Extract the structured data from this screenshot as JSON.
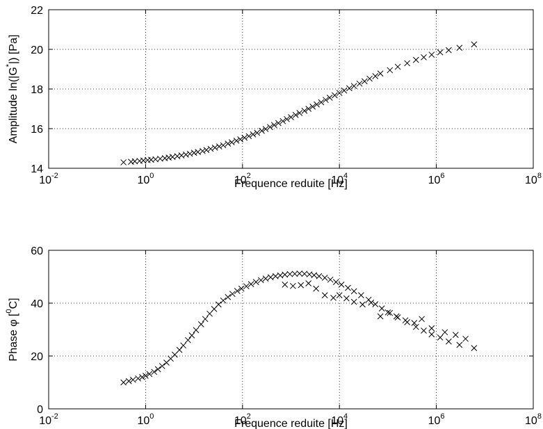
{
  "chart_data": [
    {
      "type": "scatter",
      "xscale": "log",
      "xlim": [
        0.01,
        100000000
      ],
      "ylim": [
        14,
        22
      ],
      "xticks": [
        0.01,
        1,
        100,
        10000,
        1000000,
        100000000
      ],
      "xtick_labels": [
        {
          "base": "10",
          "exp": "-2"
        },
        {
          "base": "10",
          "exp": "0"
        },
        {
          "base": "10",
          "exp": "2"
        },
        {
          "base": "10",
          "exp": "4"
        },
        {
          "base": "10",
          "exp": "6"
        },
        {
          "base": "10",
          "exp": "8"
        }
      ],
      "yticks": [
        14,
        16,
        18,
        20,
        22
      ],
      "ytick_labels": [
        "14",
        "16",
        "18",
        "20",
        "22"
      ],
      "xlabel": "Frequence reduite [Hz]",
      "ylabel": {
        "pre": "Amplitude ln(|G",
        "sup": "*",
        "post": "|) [Pa]"
      },
      "grid": true,
      "marker": "x",
      "points": [
        [
          0.35,
          14.3
        ],
        [
          0.5,
          14.33
        ],
        [
          0.6,
          14.35
        ],
        [
          0.75,
          14.37
        ],
        [
          0.9,
          14.39
        ],
        [
          1.1,
          14.41
        ],
        [
          1.3,
          14.43
        ],
        [
          1.6,
          14.45
        ],
        [
          2.0,
          14.48
        ],
        [
          2.5,
          14.51
        ],
        [
          3.0,
          14.54
        ],
        [
          3.6,
          14.57
        ],
        [
          4.5,
          14.61
        ],
        [
          5.5,
          14.65
        ],
        [
          6.8,
          14.69
        ],
        [
          8.2,
          14.73
        ],
        [
          10,
          14.78
        ],
        [
          12,
          14.82
        ],
        [
          15,
          14.87
        ],
        [
          18,
          14.92
        ],
        [
          22,
          14.98
        ],
        [
          27,
          15.04
        ],
        [
          33,
          15.1
        ],
        [
          40,
          15.16
        ],
        [
          50,
          15.24
        ],
        [
          60,
          15.31
        ],
        [
          75,
          15.39
        ],
        [
          90,
          15.46
        ],
        [
          110,
          15.54
        ],
        [
          135,
          15.62
        ],
        [
          165,
          15.71
        ],
        [
          200,
          15.79
        ],
        [
          250,
          15.89
        ],
        [
          300,
          15.98
        ],
        [
          370,
          16.08
        ],
        [
          450,
          16.18
        ],
        [
          550,
          16.28
        ],
        [
          680,
          16.38
        ],
        [
          820,
          16.48
        ],
        [
          1000,
          16.58
        ],
        [
          1250,
          16.69
        ],
        [
          1500,
          16.79
        ],
        [
          1900,
          16.9
        ],
        [
          2300,
          17.0
        ],
        [
          2800,
          17.11
        ],
        [
          3400,
          17.22
        ],
        [
          4200,
          17.33
        ],
        [
          5200,
          17.45
        ],
        [
          6300,
          17.56
        ],
        [
          8000,
          17.68
        ],
        [
          10000,
          17.8
        ],
        [
          12500,
          17.92
        ],
        [
          16000,
          18.04
        ],
        [
          20000,
          18.15
        ],
        [
          26000,
          18.27
        ],
        [
          33000,
          18.39
        ],
        [
          42000,
          18.52
        ],
        [
          55000,
          18.65
        ],
        [
          70000,
          18.78
        ],
        [
          110000,
          18.95
        ],
        [
          160000,
          19.12
        ],
        [
          250000,
          19.3
        ],
        [
          380000,
          19.47
        ],
        [
          550000,
          19.6
        ],
        [
          800000,
          19.73
        ],
        [
          1200000,
          19.85
        ],
        [
          1800000,
          19.96
        ],
        [
          3000000,
          20.08
        ],
        [
          6000000,
          20.25
        ]
      ]
    },
    {
      "type": "scatter",
      "xscale": "log",
      "xlim": [
        0.01,
        100000000
      ],
      "ylim": [
        0,
        60
      ],
      "xticks": [
        0.01,
        1,
        100,
        10000,
        1000000,
        100000000
      ],
      "xtick_labels": [
        {
          "base": "10",
          "exp": "-2"
        },
        {
          "base": "10",
          "exp": "0"
        },
        {
          "base": "10",
          "exp": "2"
        },
        {
          "base": "10",
          "exp": "4"
        },
        {
          "base": "10",
          "exp": "6"
        },
        {
          "base": "10",
          "exp": "8"
        }
      ],
      "yticks": [
        0,
        20,
        40,
        60
      ],
      "ytick_labels": [
        "0",
        "20",
        "40",
        "60"
      ],
      "xlabel": "Frequence reduite [Hz]",
      "ylabel": {
        "pre": "Phase φ [",
        "sup": "0",
        "post": "C]"
      },
      "grid": true,
      "marker": "x",
      "points": [
        [
          0.35,
          10.0
        ],
        [
          0.45,
          10.5
        ],
        [
          0.55,
          11.0
        ],
        [
          0.7,
          11.5
        ],
        [
          0.85,
          12.0
        ],
        [
          1.0,
          12.5
        ],
        [
          1.2,
          13.2
        ],
        [
          1.5,
          14.0
        ],
        [
          1.8,
          15.0
        ],
        [
          2.2,
          16.2
        ],
        [
          2.7,
          17.5
        ],
        [
          3.3,
          19.0
        ],
        [
          4.0,
          20.5
        ],
        [
          5.0,
          22.3
        ],
        [
          6.0,
          24.0
        ],
        [
          7.5,
          26.0
        ],
        [
          9.0,
          27.8
        ],
        [
          11,
          29.8
        ],
        [
          14,
          32.0
        ],
        [
          17,
          34.0
        ],
        [
          21,
          36.0
        ],
        [
          26,
          37.8
        ],
        [
          32,
          39.5
        ],
        [
          40,
          41.0
        ],
        [
          50,
          42.3
        ],
        [
          62,
          43.5
        ],
        [
          78,
          44.6
        ],
        [
          95,
          45.5
        ],
        [
          120,
          46.4
        ],
        [
          150,
          47.2
        ],
        [
          190,
          48.0
        ],
        [
          240,
          48.7
        ],
        [
          300,
          49.3
        ],
        [
          380,
          49.8
        ],
        [
          480,
          50.2
        ],
        [
          600,
          50.5
        ],
        [
          750,
          50.8
        ],
        [
          950,
          51.0
        ],
        [
          1200,
          51.1
        ],
        [
          1500,
          51.2
        ],
        [
          1900,
          51.1
        ],
        [
          2400,
          50.9
        ],
        [
          3000,
          50.6
        ],
        [
          3800,
          50.2
        ],
        [
          5000,
          49.6
        ],
        [
          6500,
          48.9
        ],
        [
          8500,
          48.0
        ],
        [
          11000,
          47.0
        ],
        [
          15000,
          45.8
        ],
        [
          20000,
          44.5
        ],
        [
          28000,
          43.0
        ],
        [
          40000,
          41.3
        ],
        [
          55000,
          39.6
        ],
        [
          75000,
          38.0
        ],
        [
          110000,
          36.3
        ],
        [
          160000,
          34.6
        ],
        [
          250000,
          32.8
        ],
        [
          380000,
          31.0
        ],
        [
          550000,
          29.6
        ],
        [
          800000,
          28.2
        ],
        [
          1200000,
          27.0
        ],
        [
          1800000,
          25.5
        ],
        [
          3000000,
          24.2
        ],
        [
          6000000,
          23.0
        ],
        [
          750,
          47.0
        ],
        [
          1100,
          46.5
        ],
        [
          1600,
          46.8
        ],
        [
          2300,
          47.5
        ],
        [
          3300,
          45.5
        ],
        [
          5000,
          43.0
        ],
        [
          7500,
          42.0
        ],
        [
          10000,
          43.0
        ],
        [
          14000,
          41.8
        ],
        [
          20000,
          40.5
        ],
        [
          30000,
          39.5
        ],
        [
          45000,
          40.2
        ],
        [
          70000,
          35.0
        ],
        [
          100000,
          36.5
        ],
        [
          150000,
          35.0
        ],
        [
          230000,
          33.5
        ],
        [
          350000,
          32.5
        ],
        [
          500000,
          34.0
        ],
        [
          800000,
          30.5
        ],
        [
          1500000,
          29.0
        ],
        [
          2500000,
          28.0
        ],
        [
          4000000,
          26.5
        ]
      ]
    }
  ]
}
